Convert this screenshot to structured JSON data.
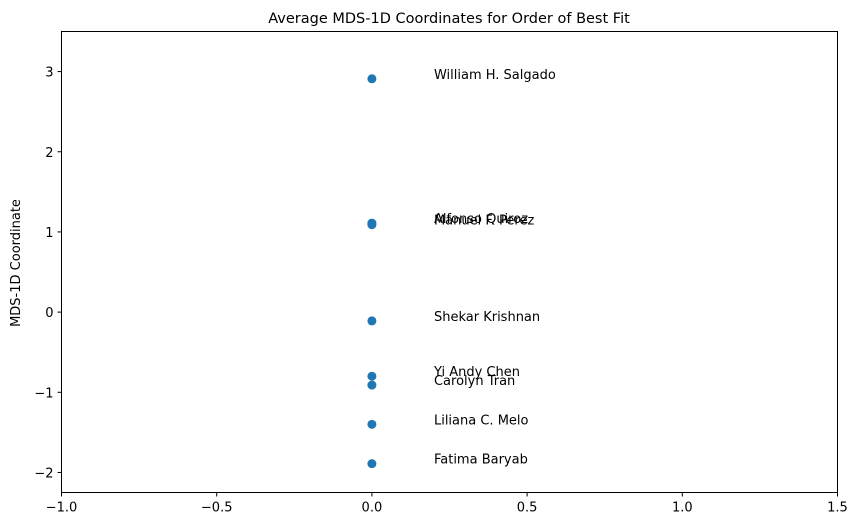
{
  "chart_data": {
    "type": "scatter",
    "title": "Average MDS-1D Coordinates for Order of Best Fit",
    "xlabel": "",
    "ylabel": "MDS-1D Coordinate",
    "xlim": [
      -1.0,
      1.5
    ],
    "ylim": [
      -2.25,
      3.5
    ],
    "x_ticks": [
      -1.0,
      -0.5,
      0.0,
      0.5,
      1.0,
      1.5
    ],
    "x_tick_labels": [
      "−1.0",
      "−0.5",
      "0.0",
      "0.5",
      "1.0",
      "1.5"
    ],
    "y_ticks": [
      -2,
      -1,
      0,
      1,
      2,
      3
    ],
    "y_tick_labels": [
      "−2",
      "−1",
      "0",
      "1",
      "2",
      "3"
    ],
    "grid": false,
    "label_x": 0.2,
    "marker_color": "#1f77b4",
    "points": [
      {
        "name": "William H. Salgado",
        "x": 0.0,
        "y": 2.91
      },
      {
        "name": "Alfonso Quiroz",
        "x": 0.0,
        "y": 1.11
      },
      {
        "name": "Manuel F. Perez",
        "x": 0.0,
        "y": 1.09
      },
      {
        "name": "Shekar Krishnan",
        "x": 0.0,
        "y": -0.11
      },
      {
        "name": "Yi Andy Chen",
        "x": 0.0,
        "y": -0.8
      },
      {
        "name": "Carolyn Tran",
        "x": 0.0,
        "y": -0.91
      },
      {
        "name": "Liliana C. Melo",
        "x": 0.0,
        "y": -1.4
      },
      {
        "name": "Fatima Baryab",
        "x": 0.0,
        "y": -1.89
      }
    ]
  }
}
